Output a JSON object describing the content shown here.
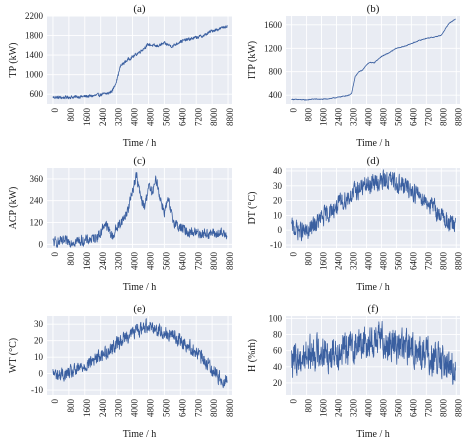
{
  "chart_data": [
    {
      "type": "line",
      "title": "(a)",
      "xlabel": "Time / h",
      "ylabel": "TP (kW)",
      "xlim": [
        -300,
        9000
      ],
      "ylim": [
        400,
        2200
      ],
      "xticks": [
        0,
        800,
        1600,
        2400,
        3200,
        4000,
        4800,
        5600,
        6400,
        7200,
        8000,
        8800
      ],
      "yticks": [
        600,
        1000,
        1400,
        1800,
        2200
      ],
      "color": "#3a5fa0",
      "series": [
        {
          "x": [
            0,
            400,
            800,
            1200,
            1600,
            2000,
            2400,
            2800,
            3000,
            3200,
            3400,
            3600,
            3800,
            4000,
            4400,
            4800,
            5200,
            5600,
            6000,
            6400,
            6800,
            7200,
            7600,
            8000,
            8400,
            8760
          ],
          "y": [
            540,
            530,
            540,
            545,
            555,
            565,
            590,
            620,
            680,
            880,
            1180,
            1250,
            1320,
            1360,
            1480,
            1620,
            1580,
            1640,
            1580,
            1680,
            1720,
            1760,
            1800,
            1900,
            1940,
            2000
          ]
        }
      ]
    },
    {
      "type": "line",
      "title": "(b)",
      "xlabel": "Time / h",
      "ylabel": "ITP (kW)",
      "xlim": [
        -300,
        9000
      ],
      "ylim": [
        250,
        1750
      ],
      "xticks": [
        0,
        800,
        1600,
        2400,
        3200,
        4000,
        4800,
        5600,
        6400,
        7200,
        8000,
        8800
      ],
      "yticks": [
        400,
        800,
        1200,
        1600
      ],
      "color": "#3a5fa0",
      "series": [
        {
          "x": [
            0,
            400,
            800,
            1200,
            1600,
            2000,
            2400,
            2800,
            3000,
            3200,
            3400,
            3600,
            3800,
            4000,
            4200,
            4400,
            4800,
            5200,
            5600,
            6000,
            6400,
            6800,
            7200,
            7600,
            8000,
            8400,
            8760
          ],
          "y": [
            330,
            325,
            320,
            335,
            330,
            340,
            360,
            385,
            395,
            420,
            720,
            800,
            830,
            920,
            960,
            950,
            1060,
            1120,
            1200,
            1230,
            1280,
            1330,
            1370,
            1390,
            1420,
            1620,
            1700
          ]
        }
      ]
    },
    {
      "type": "line",
      "title": "(c)",
      "xlabel": "Time / h",
      "ylabel": "ACP (kW)",
      "xlim": [
        -300,
        9000
      ],
      "ylim": [
        -20,
        420
      ],
      "xticks": [
        0,
        800,
        1600,
        2400,
        3200,
        4000,
        4800,
        5600,
        6400,
        7200,
        8000,
        8800
      ],
      "yticks": [
        0,
        120,
        240,
        360
      ],
      "color": "#3a5fa0",
      "series": [
        {
          "x": [
            0,
            400,
            800,
            1200,
            1600,
            2000,
            2400,
            2600,
            2800,
            3000,
            3200,
            3400,
            3600,
            3800,
            4000,
            4200,
            4400,
            4600,
            4800,
            5000,
            5200,
            5400,
            5600,
            5800,
            6000,
            6200,
            6400,
            6800,
            7200,
            7600,
            8000,
            8400,
            8760
          ],
          "y": [
            10,
            12,
            15,
            18,
            20,
            30,
            60,
            120,
            80,
            40,
            90,
            120,
            150,
            200,
            300,
            380,
            260,
            200,
            320,
            280,
            360,
            250,
            180,
            240,
            140,
            110,
            90,
            70,
            65,
            60,
            60,
            55,
            60
          ]
        }
      ]
    },
    {
      "type": "line",
      "title": "(d)",
      "xlabel": "Time / h",
      "ylabel": "DT (°C)",
      "xlim": [
        -300,
        9000
      ],
      "ylim": [
        -12,
        42
      ],
      "xticks": [
        0,
        800,
        1600,
        2400,
        3200,
        4000,
        4800,
        5600,
        6400,
        7200,
        8000,
        8800
      ],
      "yticks": [
        -10,
        0,
        10,
        20,
        30,
        40
      ],
      "color": "#3a5fa0",
      "series": [
        {
          "x": [
            0,
            400,
            800,
            1200,
            1600,
            2000,
            2400,
            2800,
            3200,
            3600,
            4000,
            4400,
            4800,
            5200,
            5600,
            6000,
            6400,
            6800,
            7200,
            7600,
            8000,
            8400,
            8760
          ],
          "y": [
            2,
            0,
            -2,
            3,
            8,
            12,
            16,
            20,
            24,
            28,
            30,
            32,
            33,
            34,
            32,
            30,
            27,
            24,
            20,
            15,
            10,
            5,
            2
          ]
        }
      ]
    },
    {
      "type": "line",
      "title": "(e)",
      "xlabel": "Time / h",
      "ylabel": "WT (°C)",
      "xlim": [
        -300,
        9000
      ],
      "ylim": [
        -13,
        35
      ],
      "xticks": [
        0,
        800,
        1600,
        2400,
        3200,
        4000,
        4800,
        5600,
        6400,
        7200,
        8000,
        8800
      ],
      "yticks": [
        -10,
        0,
        10,
        20,
        30
      ],
      "color": "#3a5fa0",
      "series": [
        {
          "x": [
            0,
            400,
            800,
            1200,
            1600,
            2000,
            2400,
            2800,
            3200,
            3600,
            4000,
            4400,
            4800,
            5200,
            5600,
            6000,
            6400,
            6800,
            7200,
            7600,
            8000,
            8400,
            8760
          ],
          "y": [
            0,
            -1,
            0,
            2,
            5,
            8,
            11,
            14,
            18,
            22,
            25,
            27,
            30,
            27,
            25,
            23,
            20,
            17,
            13,
            8,
            3,
            -3,
            -5
          ]
        }
      ]
    },
    {
      "type": "line",
      "title": "(f)",
      "xlabel": "Time / h",
      "ylabel": "H (%rh)",
      "xlim": [
        -300,
        9000
      ],
      "ylim": [
        5,
        103
      ],
      "xticks": [
        0,
        800,
        1600,
        2400,
        3200,
        4000,
        4800,
        5600,
        6400,
        7200,
        8000,
        8800
      ],
      "yticks": [
        20,
        40,
        60,
        80,
        100
      ],
      "color": "#3a5fa0",
      "series": [
        {
          "x": [
            0,
            400,
            800,
            1200,
            1600,
            2000,
            2400,
            2800,
            3200,
            3600,
            4000,
            4400,
            4800,
            5200,
            5600,
            6000,
            6400,
            6800,
            7200,
            7600,
            8000,
            8400,
            8760
          ],
          "y": [
            45,
            50,
            55,
            58,
            60,
            55,
            62,
            60,
            65,
            68,
            70,
            72,
            75,
            70,
            68,
            65,
            62,
            58,
            55,
            50,
            45,
            42,
            40
          ]
        }
      ]
    }
  ]
}
